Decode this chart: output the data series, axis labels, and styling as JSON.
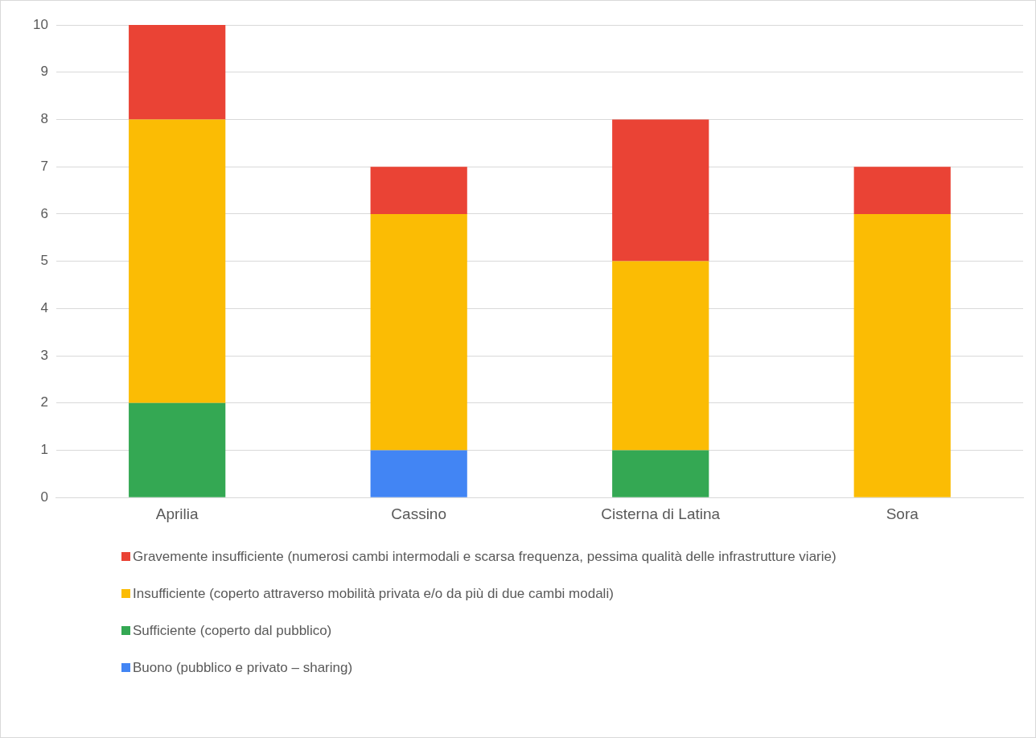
{
  "chart_data": {
    "type": "bar",
    "stacked": true,
    "categories": [
      "Aprilia",
      "Cassino",
      "Cisterna di Latina",
      "Sora"
    ],
    "series": [
      {
        "name": "Buono (pubblico e privato – sharing)",
        "color": "#4285f4",
        "values": [
          null,
          1,
          null,
          null
        ]
      },
      {
        "name": "Sufficiente (coperto dal pubblico)",
        "color": "#34a853",
        "values": [
          2,
          null,
          1,
          null
        ]
      },
      {
        "name": "Insufficiente (coperto attraverso mobilità privata e/o da più di due cambi modali)",
        "color": "#fbbc04",
        "values": [
          6,
          5,
          4,
          6
        ]
      },
      {
        "name": "Gravemente insufficiente (numerosi cambi intermodali e scarsa frequenza, pessima qualità delle infrastrutture viarie)",
        "color": "#ea4335",
        "values": [
          2,
          1,
          3,
          1
        ]
      }
    ],
    "ylim": [
      0,
      10
    ],
    "yticks": [
      0,
      1,
      2,
      3,
      4,
      5,
      6,
      7,
      8,
      9,
      10
    ],
    "grid": "y",
    "legend": "bottom"
  }
}
